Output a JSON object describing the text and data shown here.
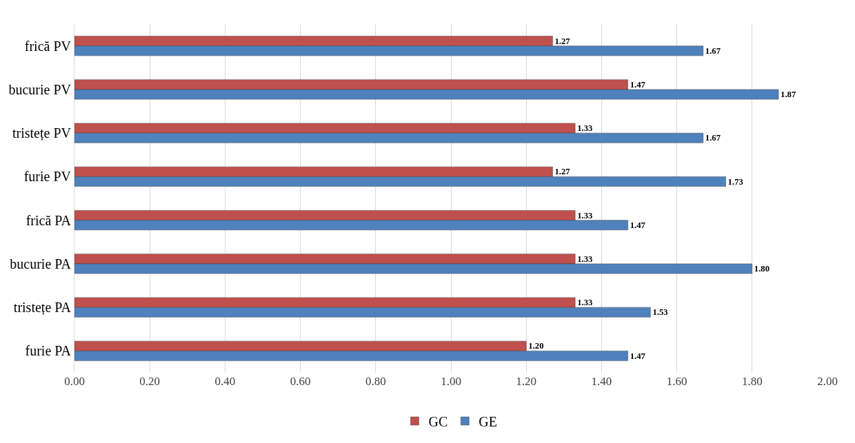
{
  "chart_data": {
    "type": "bar",
    "orientation": "horizontal",
    "categories": [
      "frică PV",
      "bucurie PV",
      "tristețe PV",
      "furie PV",
      "frică PA",
      "bucurie PA",
      "tristețe PA",
      "furie PA"
    ],
    "series": [
      {
        "name": "GC",
        "color": "#c0504d",
        "values": [
          1.27,
          1.47,
          1.33,
          1.27,
          1.33,
          1.33,
          1.33,
          1.2
        ],
        "value_labels": [
          "1.27",
          "1.47",
          "1.33",
          "1.27",
          "1.33",
          "1.33",
          "1.33",
          "1.20"
        ]
      },
      {
        "name": "GE",
        "color": "#4f81bd",
        "values": [
          1.67,
          1.87,
          1.67,
          1.73,
          1.47,
          1.8,
          1.53,
          1.47
        ],
        "value_labels": [
          "1.67",
          "1.87",
          "1.67",
          "1.73",
          "1.47",
          "1.80",
          "1.53",
          "1.47"
        ]
      }
    ],
    "xlim": [
      0,
      2
    ],
    "xticks": [
      {
        "value": 0,
        "label": "0.00"
      },
      {
        "value": 0.2,
        "label": "0.20"
      },
      {
        "value": 0.4,
        "label": "0.40"
      },
      {
        "value": 0.6,
        "label": "0.60"
      },
      {
        "value": 0.8,
        "label": "0.80"
      },
      {
        "value": 1.0,
        "label": "1.00"
      },
      {
        "value": 1.2,
        "label": "1.20"
      },
      {
        "value": 1.4,
        "label": "1.40"
      },
      {
        "value": 1.6,
        "label": "1.60"
      },
      {
        "value": 1.8,
        "label": "1.80"
      },
      {
        "value": 2.0,
        "label": "2.00"
      }
    ],
    "grid": "x",
    "legend": "bottom"
  }
}
